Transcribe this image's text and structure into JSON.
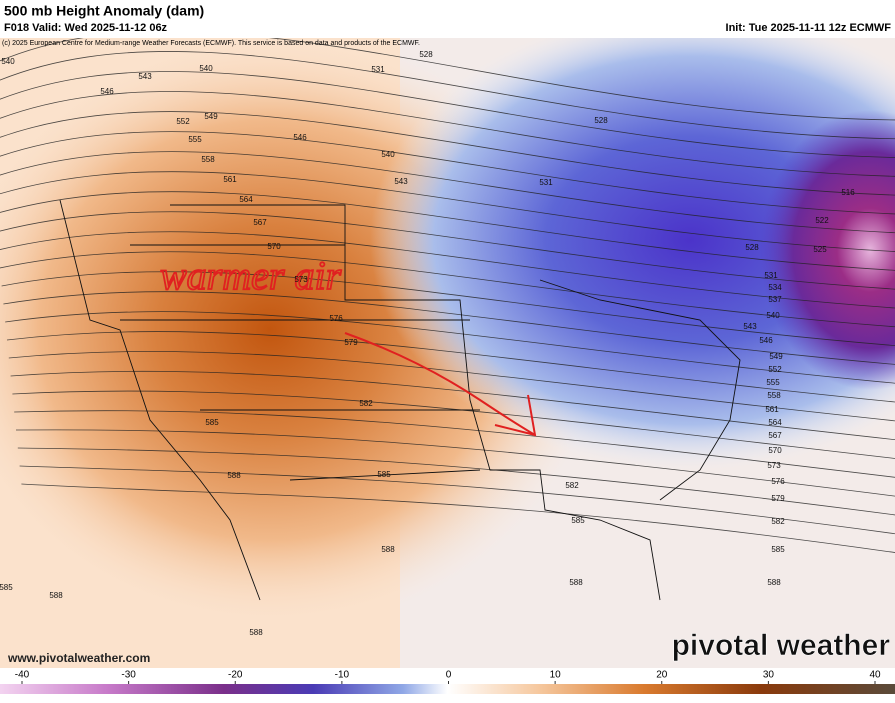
{
  "header": {
    "title": "500 mb Height Anomaly (dam)",
    "valid": "F018 Valid: Wed 2025-11-12 06z",
    "init": "Init: Tue 2025-11-11 12z ECMWF",
    "credit": "(c) 2025 European Centre for Medium-range Weather Forecasts (ECMWF). This service is based on data and products of the ECMWF."
  },
  "map": {
    "contour_labels": [
      540,
      543,
      546,
      540,
      549,
      552,
      555,
      558,
      561,
      564,
      567,
      570,
      573,
      576,
      579,
      582,
      585,
      588,
      585,
      588,
      585,
      582,
      588,
      585,
      588,
      588,
      546,
      540,
      543,
      531,
      528,
      528,
      531,
      516,
      522,
      525,
      528,
      531,
      534,
      537,
      540,
      543,
      546,
      549,
      552,
      555,
      558,
      561,
      564,
      567,
      570,
      573,
      576,
      579,
      582,
      585,
      588
    ],
    "annotation": "warmer air",
    "url": "www.pivotalweather.com",
    "watermark": "pivotal weather"
  },
  "colorbar": {
    "lim": [
      -40,
      40
    ],
    "ticks": [
      -40,
      -30,
      -20,
      -10,
      0,
      10,
      20,
      30,
      40
    ]
  }
}
